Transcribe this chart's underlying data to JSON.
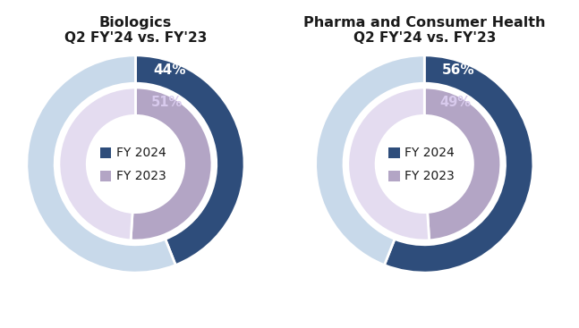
{
  "biologics": {
    "title_line1": "Biologics",
    "title_line2": "Q2 FY'24 vs. FY'23",
    "outer_pct": 44,
    "inner_pct": 51,
    "outer_label": "44%",
    "inner_label": "51%"
  },
  "pharma": {
    "title_line1": "Pharma and Consumer Health",
    "title_line2": "Q2 FY'24 vs. FY'23",
    "outer_pct": 56,
    "inner_pct": 49,
    "outer_label": "56%",
    "inner_label": "49%"
  },
  "colors": {
    "dark_blue": "#2E4D7B",
    "light_blue": "#C8D9EA",
    "dark_lavender": "#B3A5C5",
    "light_lavender": "#E4DCF0"
  },
  "background_color": "#FFFFFF",
  "title_fontsize": 11.5,
  "subtitle_fontsize": 11,
  "outer_label_fontsize": 11,
  "inner_label_fontsize": 10.5,
  "legend_fontsize": 10
}
